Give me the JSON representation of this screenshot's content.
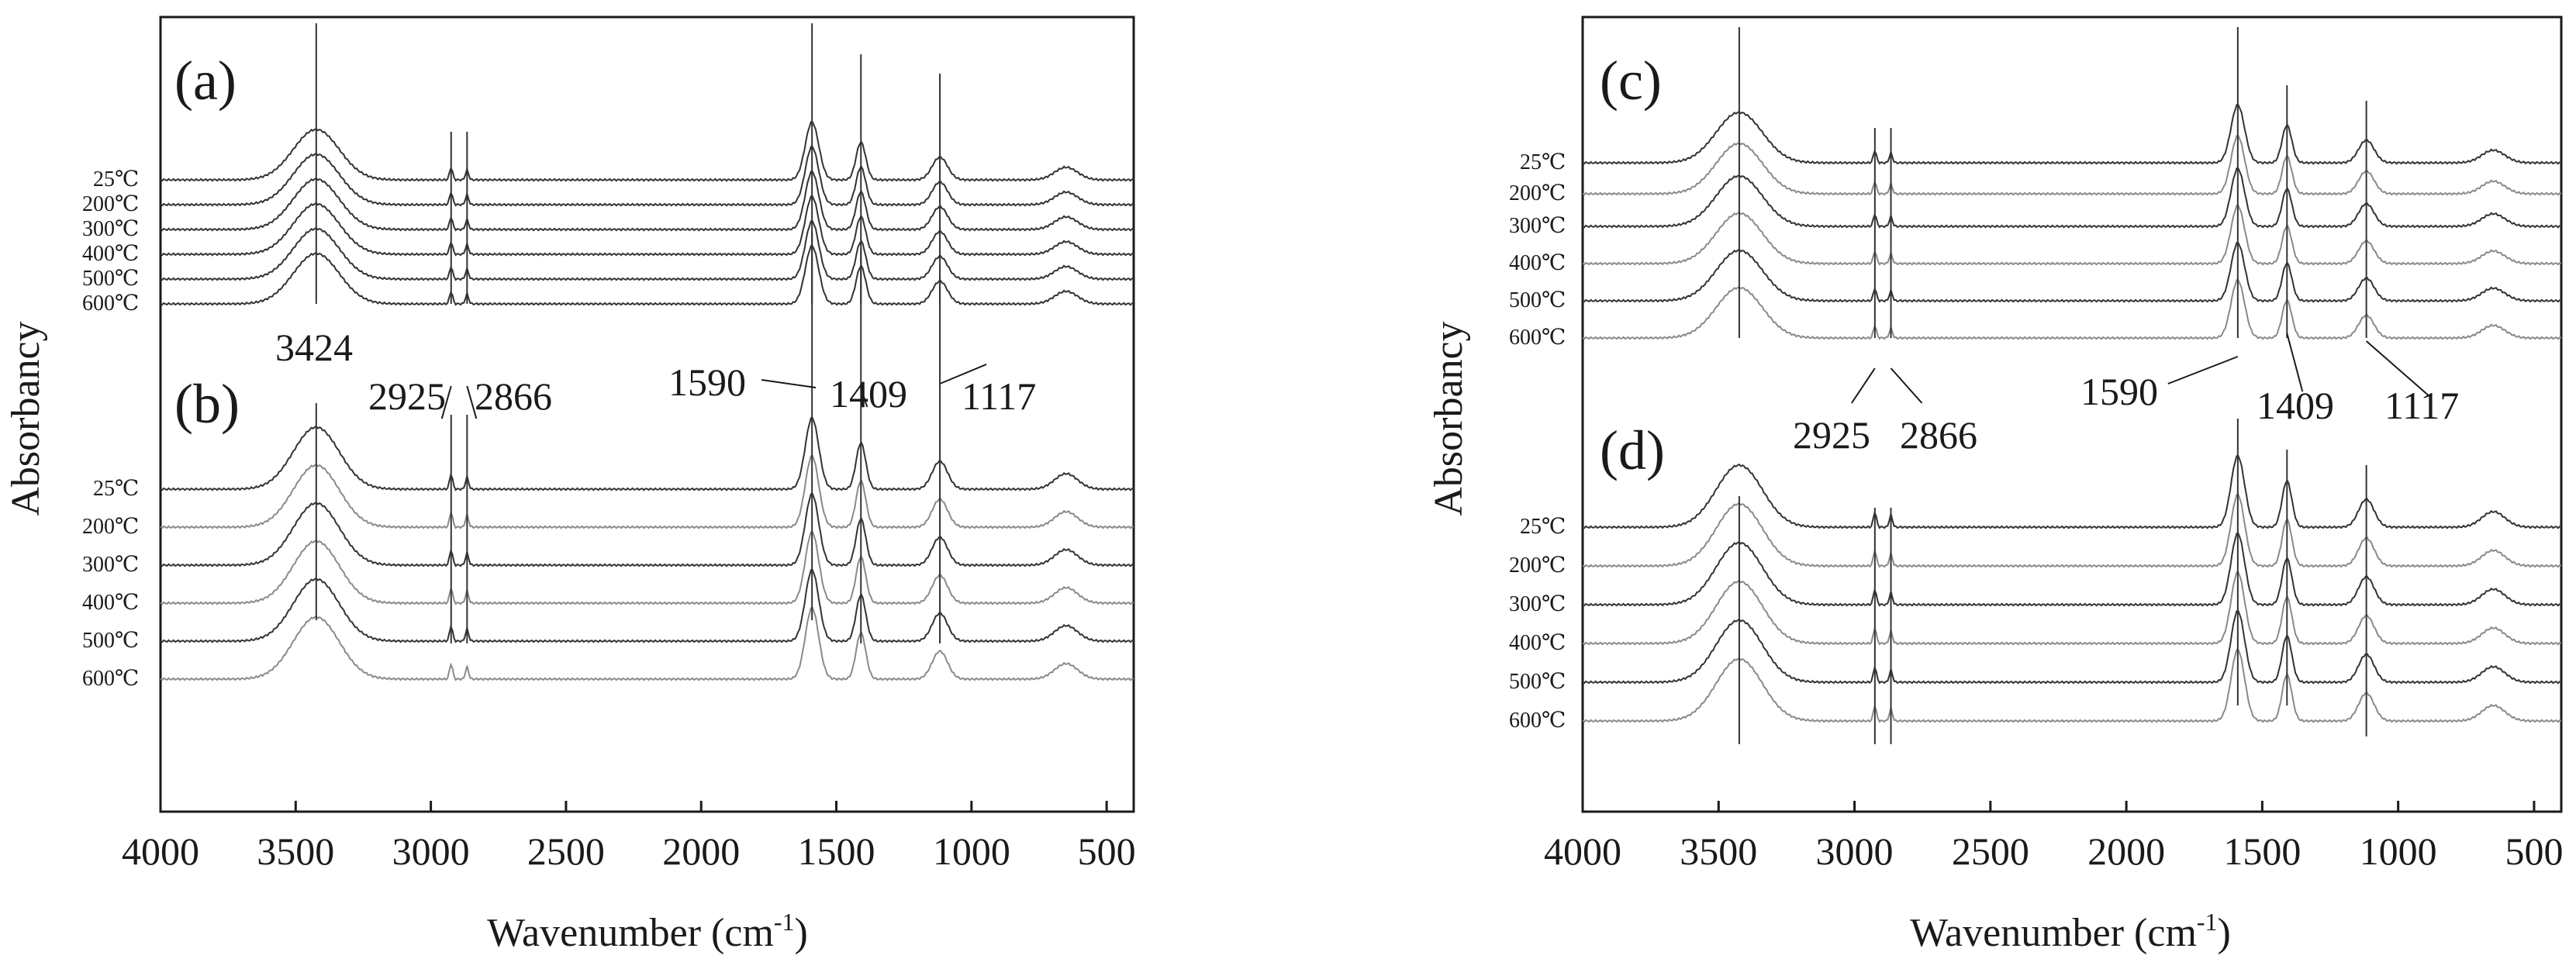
{
  "colors": {
    "axis": "#1a1a1a",
    "dark_curve": "#333333",
    "light_curve": "#8a8a8a",
    "background": "#ffffff"
  },
  "chart_data": [
    {
      "type": "line",
      "id": "left",
      "xlabel": "Wavenumber (cm",
      "xlabel_sup": "-1",
      "xlabel_close": ")",
      "ylabel": "Absorbancy",
      "xlim": [
        4000,
        400
      ],
      "xticks": [
        4000,
        3500,
        3000,
        2500,
        2000,
        1500,
        1000,
        500
      ],
      "panels": [
        {
          "label": "(a)",
          "series": [
            "25℃",
            "200℃",
            "300℃",
            "400℃",
            "500℃",
            "600℃"
          ],
          "guide_lines": [
            3424,
            2925,
            2866,
            1590,
            1409,
            1117
          ]
        },
        {
          "label": "(b)",
          "series": [
            "25℃",
            "200℃",
            "300℃",
            "400℃",
            "500℃",
            "600℃"
          ],
          "guide_lines": [
            3424,
            2925,
            2866,
            1590,
            1409,
            1117
          ]
        }
      ],
      "annotations": [
        {
          "text": "3424",
          "x": 3424
        },
        {
          "text": "2925",
          "x": 2925
        },
        {
          "text": "2866",
          "x": 2866
        },
        {
          "text": "1590",
          "x": 1590
        },
        {
          "text": "1409",
          "x": 1409
        },
        {
          "text": "1117",
          "x": 1117
        }
      ]
    },
    {
      "type": "line",
      "id": "right",
      "xlabel": "Wavenumber (cm",
      "xlabel_sup": "-1",
      "xlabel_close": ")",
      "ylabel": "Absorbancy",
      "xlim": [
        4000,
        400
      ],
      "xticks": [
        4000,
        3500,
        3000,
        2500,
        2000,
        1500,
        1000,
        500
      ],
      "panels": [
        {
          "label": "(c)",
          "series": [
            "25℃",
            "200℃",
            "300℃",
            "400℃",
            "500℃",
            "600℃"
          ],
          "guide_lines": [
            3424,
            2925,
            2866,
            1590,
            1409,
            1117
          ]
        },
        {
          "label": "(d)",
          "series": [
            "25℃",
            "200℃",
            "300℃",
            "400℃",
            "500℃",
            "600℃"
          ],
          "guide_lines": [
            3424,
            2925,
            2866,
            1590,
            1409,
            1117
          ]
        }
      ],
      "annotations": [
        {
          "text": "2925",
          "x": 2925
        },
        {
          "text": "2866",
          "x": 2866
        },
        {
          "text": "1590",
          "x": 1590
        },
        {
          "text": "1409",
          "x": 1409
        },
        {
          "text": "1117",
          "x": 1117
        }
      ]
    }
  ]
}
